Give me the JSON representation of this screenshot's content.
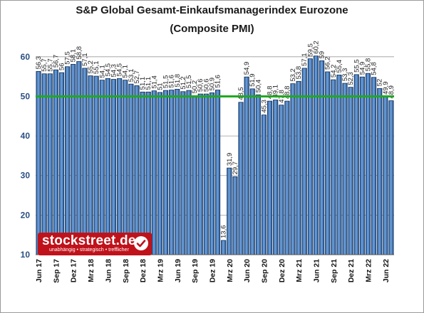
{
  "chart_data": {
    "type": "bar",
    "title": "S&P Global Gesamt-Einkaufsmanagerindex Eurozone",
    "subtitle": "(Composite PMI)",
    "values": [
      56.3,
      55.7,
      55.7,
      56.7,
      56.0,
      57.5,
      58.1,
      58.8,
      57.1,
      55.2,
      55.1,
      54.1,
      54.5,
      54.3,
      54.5,
      54.1,
      53.1,
      52.7,
      51.1,
      51.1,
      51.4,
      51.0,
      51.5,
      51.6,
      51.8,
      51.2,
      51.5,
      50.2,
      50.6,
      50.6,
      50.9,
      51.6,
      13.6,
      31.9,
      29.7,
      48.5,
      54.9,
      51.9,
      50.4,
      45.3,
      48.8,
      49.1,
      47.8,
      48.8,
      53.2,
      53.8,
      57.1,
      59.5,
      60.2,
      59.0,
      56.2,
      54.2,
      55.4,
      53.3,
      52.3,
      55.5,
      54.9,
      55.8,
      54.8,
      52.0,
      49.9,
      48.9
    ],
    "x_tick_labels": [
      "Jun 17",
      "Sep 17",
      "Dez 17",
      "Mrz 18",
      "Jun 18",
      "Sep 18",
      "Dez 18",
      "Mrz 19",
      "Jun 19",
      "Sep 19",
      "Dez 19",
      "Mrz 20",
      "Jun 20",
      "Sep 20",
      "Dez 20",
      "Mrz 21",
      "Jun 21",
      "Sep 21",
      "Dez 21",
      "Mrz 22",
      "Jun 22"
    ],
    "y_tick_labels": [
      "10",
      "20",
      "30",
      "40",
      "50",
      "60"
    ],
    "ylim": [
      10,
      65
    ],
    "reference_line": 50,
    "grid": true,
    "colors": {
      "bar": "#4f86c6",
      "bar_edge": "#0d2f5a",
      "reference_line": "#1faa1f",
      "axis_text": "#2a4f82",
      "grid": "#9a9a9a"
    }
  },
  "logo": {
    "name": "stockstreet.de",
    "tagline": "unabhängig • strategisch • trefflicher",
    "check_icon": "check-circle-icon"
  }
}
